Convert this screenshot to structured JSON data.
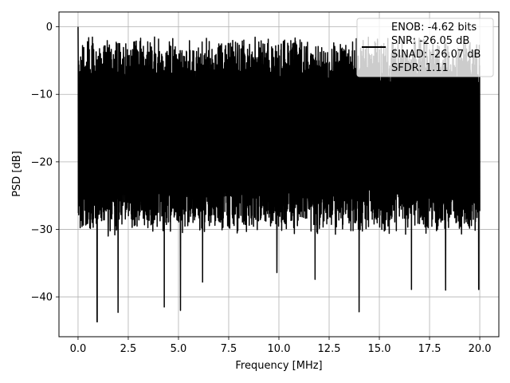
{
  "chart_data": {
    "type": "line",
    "xlabel": "Frequency [MHz]",
    "ylabel": "PSD [dB]",
    "xlim": [
      -0.95,
      20.95
    ],
    "ylim": [
      -45.9,
      2.2
    ],
    "xticks": [
      0.0,
      2.5,
      5.0,
      7.5,
      10.0,
      12.5,
      15.0,
      17.5,
      20.0
    ],
    "xtick_labels": [
      "0.0",
      "2.5",
      "5.0",
      "7.5",
      "10.0",
      "12.5",
      "15.0",
      "17.5",
      "20.0"
    ],
    "yticks": [
      0,
      -10,
      -20,
      -30,
      -40
    ],
    "ytick_labels": [
      "0",
      "−10",
      "−20",
      "−30",
      "−40"
    ],
    "grid": true,
    "legend_placement": "upper right",
    "legend_lines": [
      "ENOB: -4.62 bits",
      "SNR: -26.05 dB",
      "SINAD: -26.07 dB",
      "SFDR: 1.11"
    ],
    "series": [
      {
        "color": "#000000",
        "x_range": [
          0.0,
          20.0
        ],
        "description": "dense noise-like power spectral density spanning roughly -44 to 0 dB",
        "peak": {
          "x": 0.0,
          "y": 0.0
        },
        "deep_nulls": [
          {
            "x": 0.95,
            "y": -43.7
          },
          {
            "x": 1.5,
            "y": -31.0
          },
          {
            "x": 1.99,
            "y": -42.3
          },
          {
            "x": 4.29,
            "y": -41.5
          },
          {
            "x": 5.1,
            "y": -42.0
          },
          {
            "x": 6.2,
            "y": -37.8
          },
          {
            "x": 9.9,
            "y": -36.4
          },
          {
            "x": 11.8,
            "y": -37.4
          },
          {
            "x": 13.99,
            "y": -42.2
          },
          {
            "x": 16.6,
            "y": -38.9
          },
          {
            "x": 18.3,
            "y": -39.0
          },
          {
            "x": 19.95,
            "y": -38.9
          }
        ],
        "upper_envelope_db": -1.5,
        "lower_envelope_db": -29.0
      }
    ]
  }
}
